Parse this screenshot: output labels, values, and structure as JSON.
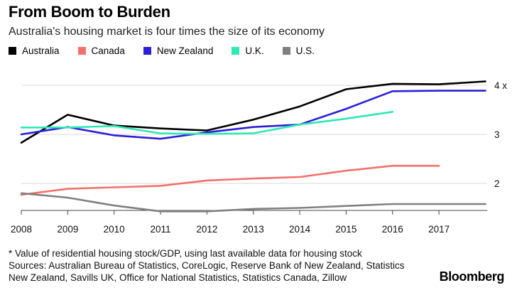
{
  "header": {
    "title": "From Boom to Burden",
    "subtitle": "Australia's housing market is four times the size of its economy"
  },
  "chart_data": {
    "type": "line",
    "title": "From Boom to Burden",
    "subtitle": "Australia's housing market is four times the size of its economy",
    "xlabel": "",
    "ylabel": "",
    "x_ticks": [
      "2008",
      "2009",
      "2010",
      "2011",
      "2012",
      "2013",
      "2014",
      "2015",
      "2016",
      "2017"
    ],
    "y_ticks": [
      {
        "value": 2,
        "label": "2"
      },
      {
        "value": 3,
        "label": "3"
      },
      {
        "value": 4,
        "label": "4 x"
      }
    ],
    "xlim": [
      2008,
      2018.1
    ],
    "ylim": [
      1.45,
      4.25
    ],
    "grid": "horizontal",
    "legend_position": "top-left",
    "series": [
      {
        "name": "Australia",
        "color": "#000000",
        "x": [
          2008,
          2009,
          2010,
          2011,
          2012,
          2013,
          2014,
          2015,
          2016,
          2017,
          2018
        ],
        "values": [
          2.83,
          3.4,
          3.18,
          3.12,
          3.08,
          3.3,
          3.57,
          3.92,
          4.03,
          4.02,
          4.08
        ]
      },
      {
        "name": "Canada",
        "color": "#f4706b",
        "x": [
          2008,
          2009,
          2010,
          2011,
          2012,
          2013,
          2014,
          2015,
          2016,
          2017
        ],
        "values": [
          1.77,
          1.89,
          1.92,
          1.95,
          2.06,
          2.1,
          2.13,
          2.26,
          2.36,
          2.36
        ]
      },
      {
        "name": "New Zealand",
        "color": "#2b1fd8",
        "x": [
          2008,
          2009,
          2010,
          2011,
          2012,
          2013,
          2014,
          2015,
          2016,
          2017,
          2018
        ],
        "values": [
          3.0,
          3.15,
          2.98,
          2.91,
          3.04,
          3.15,
          3.2,
          3.52,
          3.88,
          3.89,
          3.89
        ]
      },
      {
        "name": "U.K.",
        "color": "#2fe8b5",
        "x": [
          2008,
          2009,
          2010,
          2011,
          2012,
          2013,
          2014,
          2015,
          2016
        ],
        "values": [
          3.14,
          3.14,
          3.17,
          3.02,
          3.01,
          3.02,
          3.2,
          3.32,
          3.46
        ]
      },
      {
        "name": "U.S.",
        "color": "#808080",
        "x": [
          2008,
          2009,
          2010,
          2011,
          2012,
          2013,
          2014,
          2015,
          2016,
          2017,
          2018
        ],
        "values": [
          1.8,
          1.71,
          1.55,
          1.43,
          1.43,
          1.48,
          1.5,
          1.54,
          1.58,
          1.58,
          1.58
        ]
      }
    ]
  },
  "footnote": {
    "note": "* Value of residential housing stock/GDP, using last available data for housing stock",
    "sources_line1": "Sources: Australian Bureau of Statistics, CoreLogic, Reserve Bank of New Zealand, Statistics",
    "sources_line2": "New Zealand, Savills UK, Office for National Statistics, Statistics Canada, Zillow"
  },
  "brand": "Bloomberg"
}
